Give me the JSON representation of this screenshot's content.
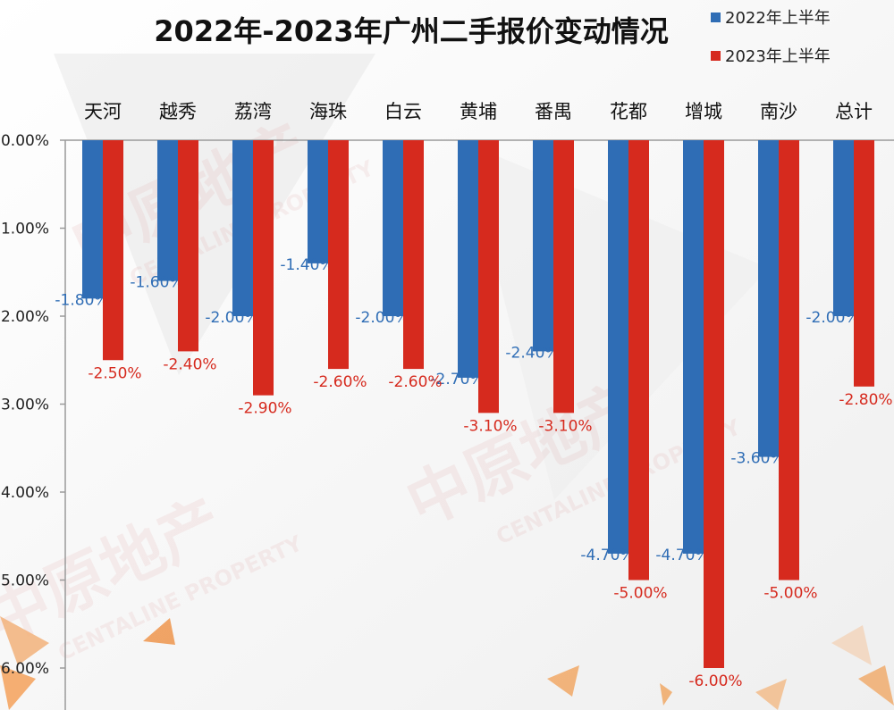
{
  "chart_data": {
    "type": "bar",
    "title": "2022年-2023年广州二手报价变动情况",
    "categories": [
      "天河",
      "越秀",
      "荔湾",
      "海珠",
      "白云",
      "黄埔",
      "番禺",
      "花都",
      "增城",
      "南沙",
      "总计"
    ],
    "series": [
      {
        "name": "2022年上半年",
        "color": "#2f6db5",
        "values": [
          -1.8,
          -1.6,
          -2.0,
          -1.4,
          -2.0,
          -2.7,
          -2.4,
          -4.7,
          -4.7,
          -3.6,
          -2.0
        ],
        "labels": [
          "-1.80%",
          "-1.60%",
          "-2.00%",
          "-1.40%",
          "-2.00%",
          "-2.70%",
          "-2.40%",
          "-4.70%",
          "-4.70%",
          "-3.60%",
          "-2.00%"
        ]
      },
      {
        "name": "2023年上半年",
        "color": "#d62a1e",
        "values": [
          -2.5,
          -2.4,
          -2.9,
          -2.6,
          -2.6,
          -3.1,
          -3.1,
          -5.0,
          -6.0,
          -5.0,
          -2.8
        ],
        "labels": [
          "-2.50%",
          "-2.40%",
          "-2.90%",
          "-2.60%",
          "-2.60%",
          "-3.10%",
          "-3.10%",
          "-5.00%",
          "-6.00%",
          "-5.00%",
          "-2.80%"
        ]
      }
    ],
    "ylim": [
      -6.0,
      0.0
    ],
    "y_ticks": [
      0,
      -1,
      -2,
      -3,
      -4,
      -5,
      -6
    ],
    "y_tick_labels": [
      "0.00%",
      "1.00%",
      "2.00%",
      "3.00%",
      "4.00%",
      "5.00%",
      "6.00%"
    ],
    "legend_position": "top-right",
    "category_axis_position": "top",
    "grid": false
  },
  "watermark": {
    "brand_cn": "中原地产",
    "brand_en": "CENTALINE PROPERTY"
  }
}
